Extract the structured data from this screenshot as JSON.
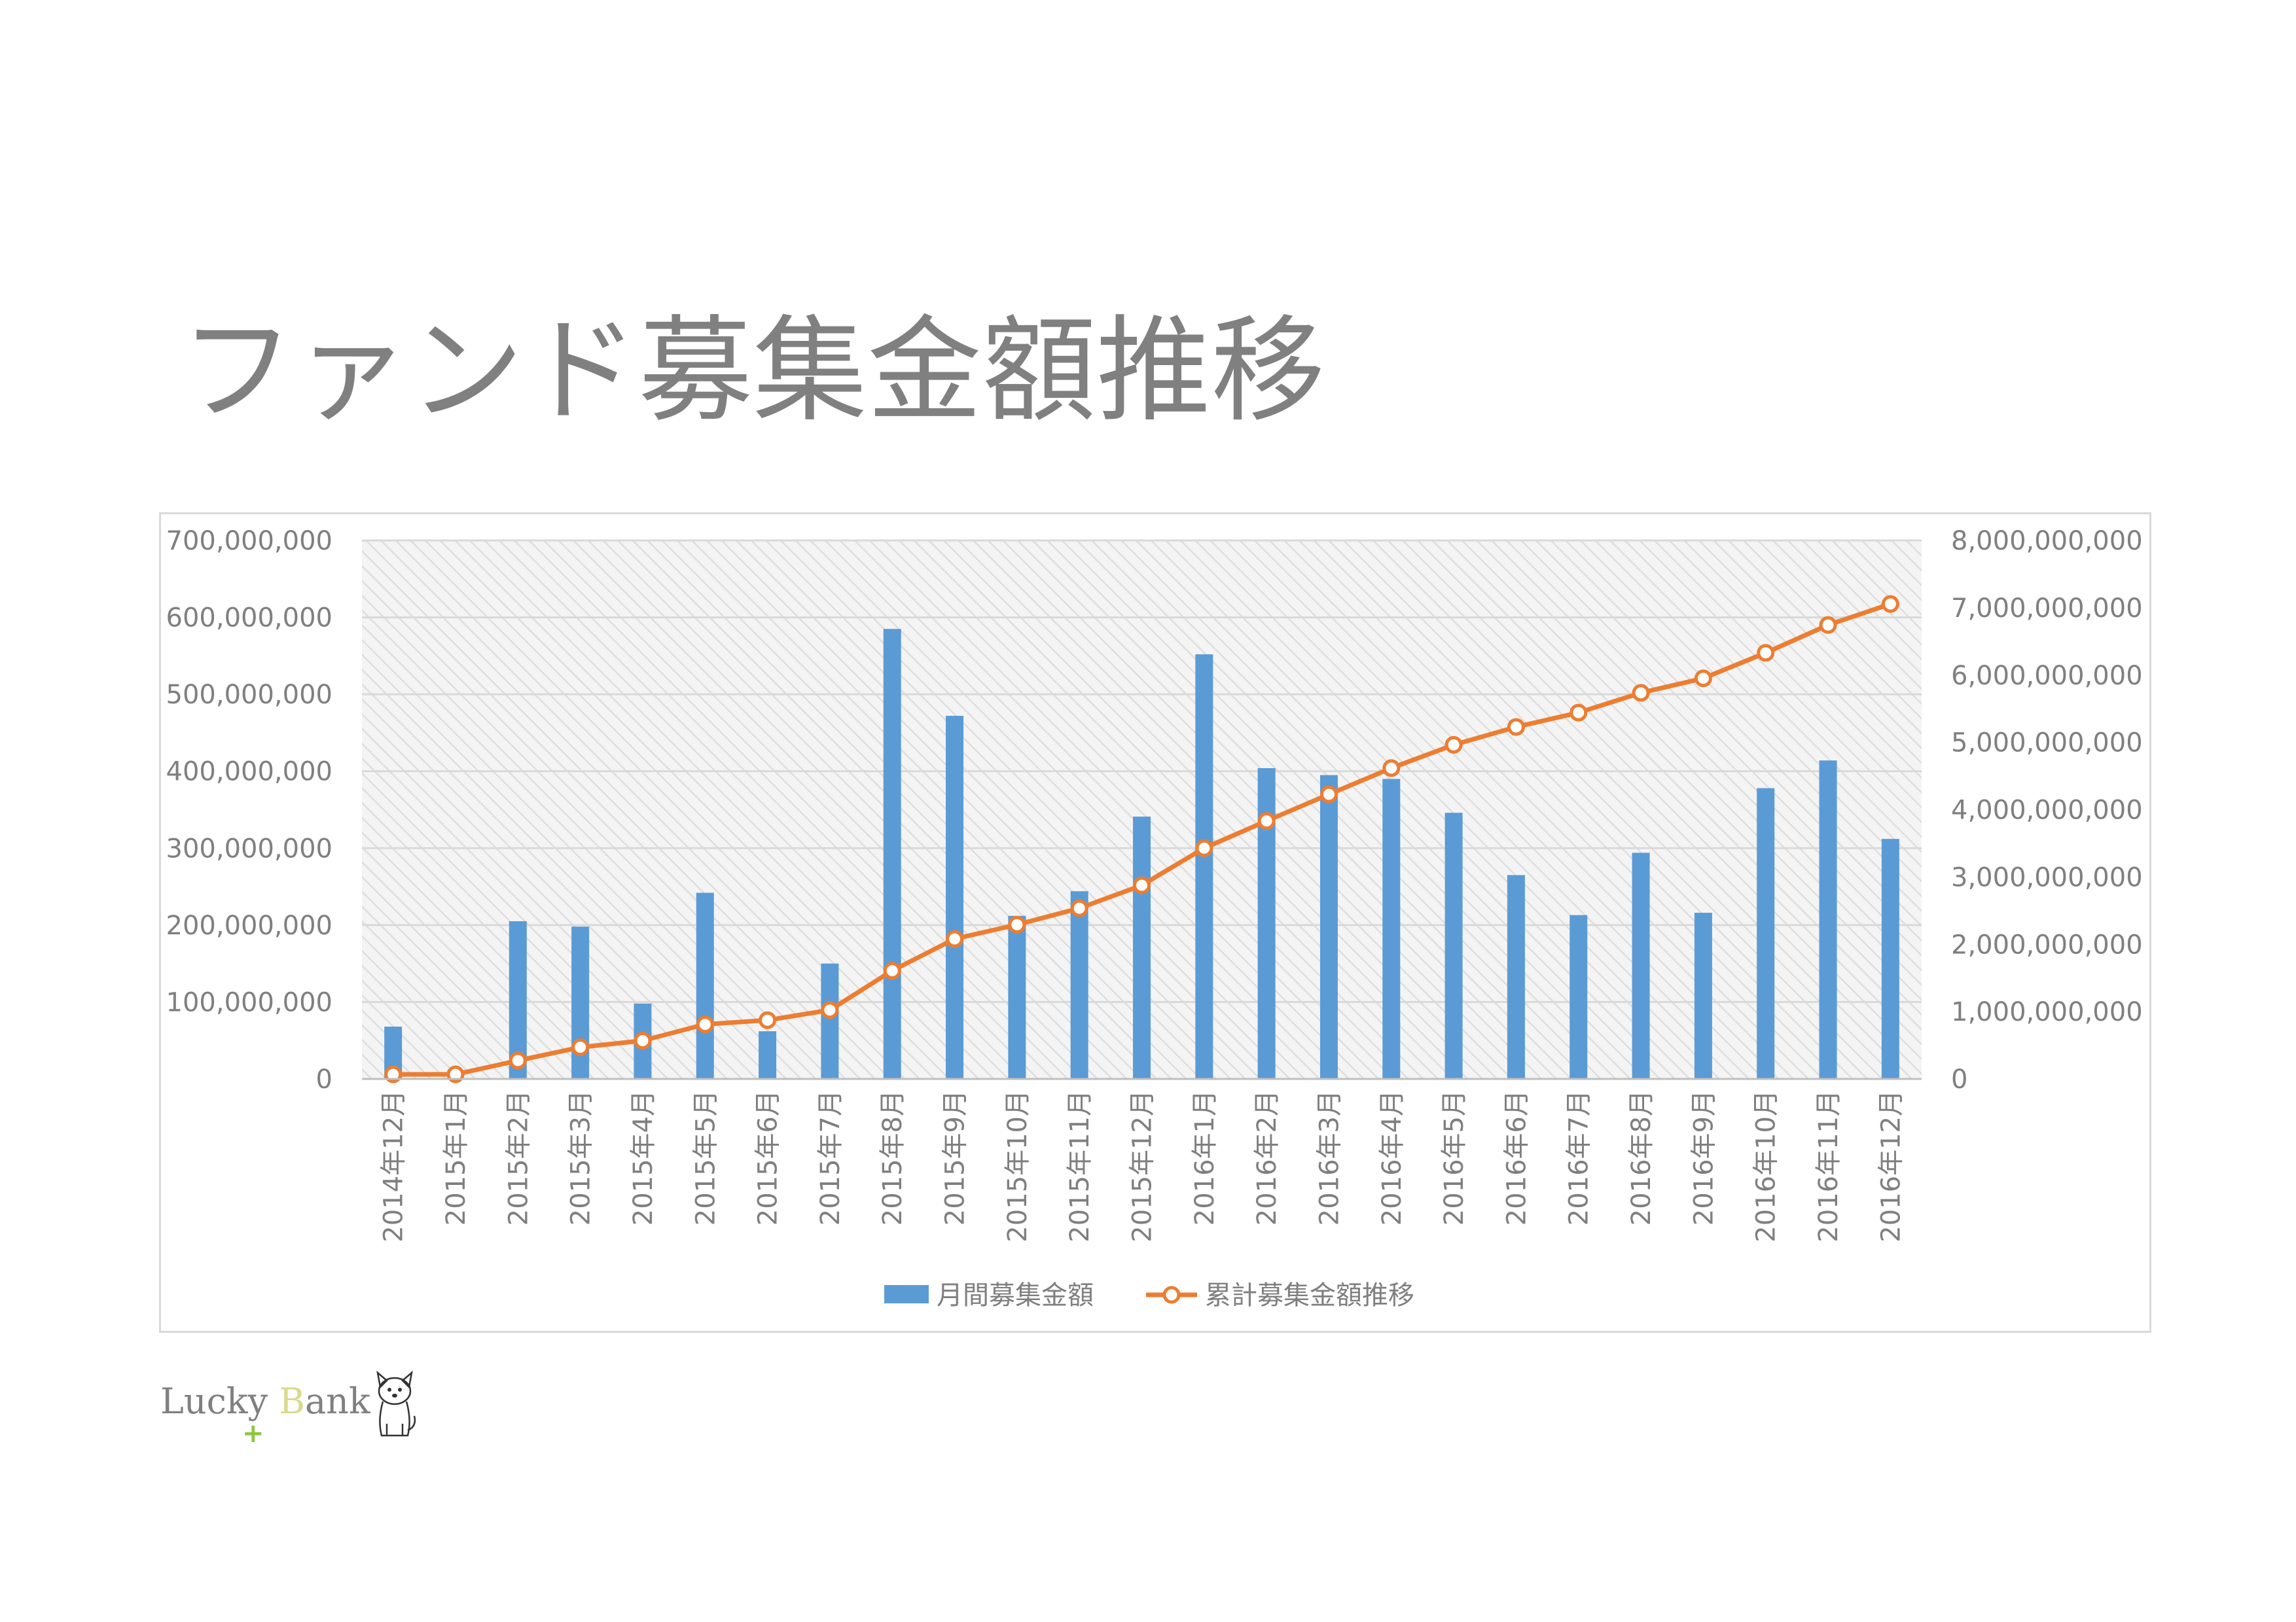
{
  "page": {
    "title": "ファンド募集金額推移"
  },
  "logo": {
    "text_part1": "Luck",
    "text_y": "y",
    "text_space": " ",
    "text_b": "B",
    "text_rest": "ank",
    "cross_glyph": "+",
    "icon": "dog-mascot-icon"
  },
  "chart_data": {
    "type": "bar",
    "categories": [
      "2014年12月",
      "2015年1月",
      "2015年2月",
      "2015年3月",
      "2015年4月",
      "2015年5月",
      "2015年6月",
      "2015年7月",
      "2015年8月",
      "2015年9月",
      "2015年10月",
      "2015年11月",
      "2015年12月",
      "2016年1月",
      "2016年2月",
      "2016年3月",
      "2016年4月",
      "2016年5月",
      "2016年6月",
      "2016年7月",
      "2016年8月",
      "2016年9月",
      "2016年10月",
      "2016年11月",
      "2016年12月"
    ],
    "series": [
      {
        "name": "月間募集金額",
        "type": "bar",
        "axis": "left",
        "color": "#5b9bd5",
        "values": [
          68000000,
          0,
          205000000,
          198000000,
          98000000,
          242000000,
          62000000,
          150000000,
          585000000,
          472000000,
          212000000,
          244000000,
          341000000,
          552000000,
          404000000,
          395000000,
          390000000,
          346000000,
          265000000,
          213000000,
          294000000,
          216000000,
          378000000,
          414000000,
          312000000
        ]
      },
      {
        "name": "累計募集金額推移",
        "type": "line",
        "axis": "right",
        "color": "#ed7d31",
        "values": [
          68000000,
          68000000,
          273000000,
          471000000,
          569000000,
          811000000,
          873000000,
          1023000000,
          1608000000,
          2080000000,
          2292000000,
          2536000000,
          2877000000,
          3429000000,
          3833000000,
          4228000000,
          4618000000,
          4964000000,
          5229000000,
          5442000000,
          5736000000,
          5952000000,
          6330000000,
          6744000000,
          7056000000
        ]
      }
    ],
    "y_left": {
      "min": 0,
      "max": 700000000,
      "ticks": [
        0,
        100000000,
        200000000,
        300000000,
        400000000,
        500000000,
        600000000,
        700000000
      ],
      "tick_labels": [
        "0",
        "100,000,000",
        "200,000,000",
        "300,000,000",
        "400,000,000",
        "500,000,000",
        "600,000,000",
        "700,000,000"
      ]
    },
    "y_right": {
      "min": 0,
      "max": 8000000000,
      "ticks": [
        0,
        1000000000,
        2000000000,
        3000000000,
        4000000000,
        5000000000,
        6000000000,
        7000000000,
        8000000000
      ],
      "tick_labels": [
        "0",
        "1,000,000,000",
        "2,000,000,000",
        "3,000,000,000",
        "4,000,000,000",
        "5,000,000,000",
        "6,000,000,000",
        "7,000,000,000",
        "8,000,000,000"
      ]
    },
    "grid": true,
    "plot_background": "hatched-light-gray",
    "legend": "bottom-center",
    "colors": {
      "bar": "#5b9bd5",
      "line": "#ed7d31",
      "axis_text": "#7f7f7f",
      "grid": "#d9d9d9"
    }
  }
}
